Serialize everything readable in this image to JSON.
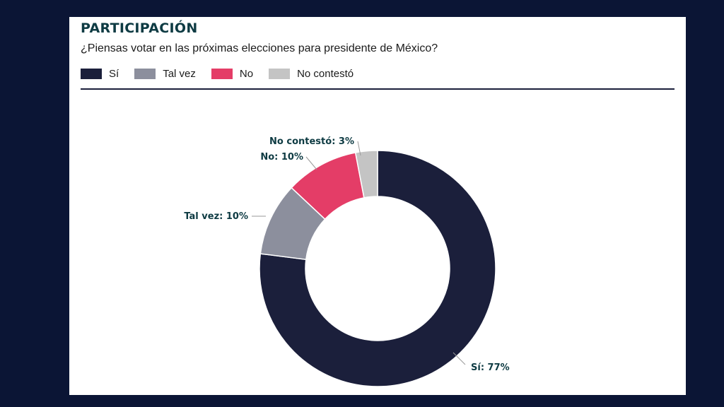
{
  "title": "PARTICIPACIÓN",
  "subtitle": "¿Piensas votar en las próximas elecciones para presidente de México?",
  "legend": [
    {
      "label": "Sí",
      "color": "#1b1f3b"
    },
    {
      "label": "Tal vez",
      "color": "#8c8f9d"
    },
    {
      "label": "No",
      "color": "#e43d67"
    },
    {
      "label": "No contestó",
      "color": "#c4c4c4"
    }
  ],
  "chart_data": {
    "type": "pie",
    "donut": true,
    "title": "PARTICIPACIÓN",
    "subtitle": "¿Piensas votar en las próximas elecciones para presidente de México?",
    "categories": [
      "Sí",
      "Tal vez",
      "No",
      "No contestó"
    ],
    "values": [
      77,
      10,
      10,
      3
    ],
    "colors": [
      "#1b1f3b",
      "#8c8f9d",
      "#e43d67",
      "#c4c4c4"
    ],
    "data_labels": [
      "Sí: 77%",
      "Tal vez: 10%",
      "No: 10%",
      "No contestó: 3%"
    ],
    "legend_position": "top-left"
  }
}
